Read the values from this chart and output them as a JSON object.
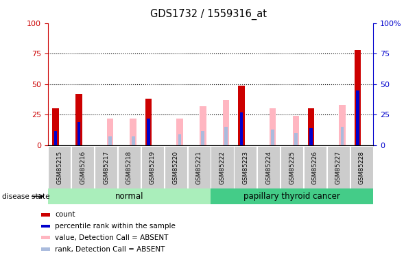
{
  "title": "GDS1732 / 1559316_at",
  "samples": [
    "GSM85215",
    "GSM85216",
    "GSM85217",
    "GSM85218",
    "GSM85219",
    "GSM85220",
    "GSM85221",
    "GSM85222",
    "GSM85223",
    "GSM85224",
    "GSM85225",
    "GSM85226",
    "GSM85227",
    "GSM85228"
  ],
  "count_values": [
    30,
    42,
    0,
    0,
    38,
    0,
    0,
    0,
    49,
    0,
    0,
    30,
    0,
    78
  ],
  "percentile_values": [
    12,
    19,
    0,
    0,
    22,
    0,
    0,
    0,
    27,
    0,
    0,
    14,
    0,
    45
  ],
  "absent_value_values": [
    0,
    0,
    22,
    22,
    0,
    22,
    32,
    37,
    0,
    30,
    24,
    0,
    33,
    0
  ],
  "absent_rank_values": [
    0,
    0,
    7,
    7,
    0,
    9,
    12,
    15,
    0,
    13,
    10,
    0,
    15,
    0
  ],
  "normal_group": [
    0,
    1,
    2,
    3,
    4,
    5,
    6
  ],
  "cancer_group": [
    7,
    8,
    9,
    10,
    11,
    12,
    13
  ],
  "group_labels": [
    "normal",
    "papillary thyroid cancer"
  ],
  "ylim": [
    0,
    100
  ],
  "yticks": [
    0,
    25,
    50,
    75,
    100
  ],
  "count_color": "#CC0000",
  "percentile_color": "#0000CC",
  "absent_value_color": "#FFB6C1",
  "absent_rank_color": "#AABBDD",
  "normal_bg": "#AAEEBB",
  "cancer_bg": "#44CC88",
  "xticklabel_area_color": "#CCCCCC",
  "left_axis_color": "#CC0000",
  "right_axis_color": "#0000CC",
  "legend_labels": [
    "count",
    "percentile rank within the sample",
    "value, Detection Call = ABSENT",
    "rank, Detection Call = ABSENT"
  ]
}
